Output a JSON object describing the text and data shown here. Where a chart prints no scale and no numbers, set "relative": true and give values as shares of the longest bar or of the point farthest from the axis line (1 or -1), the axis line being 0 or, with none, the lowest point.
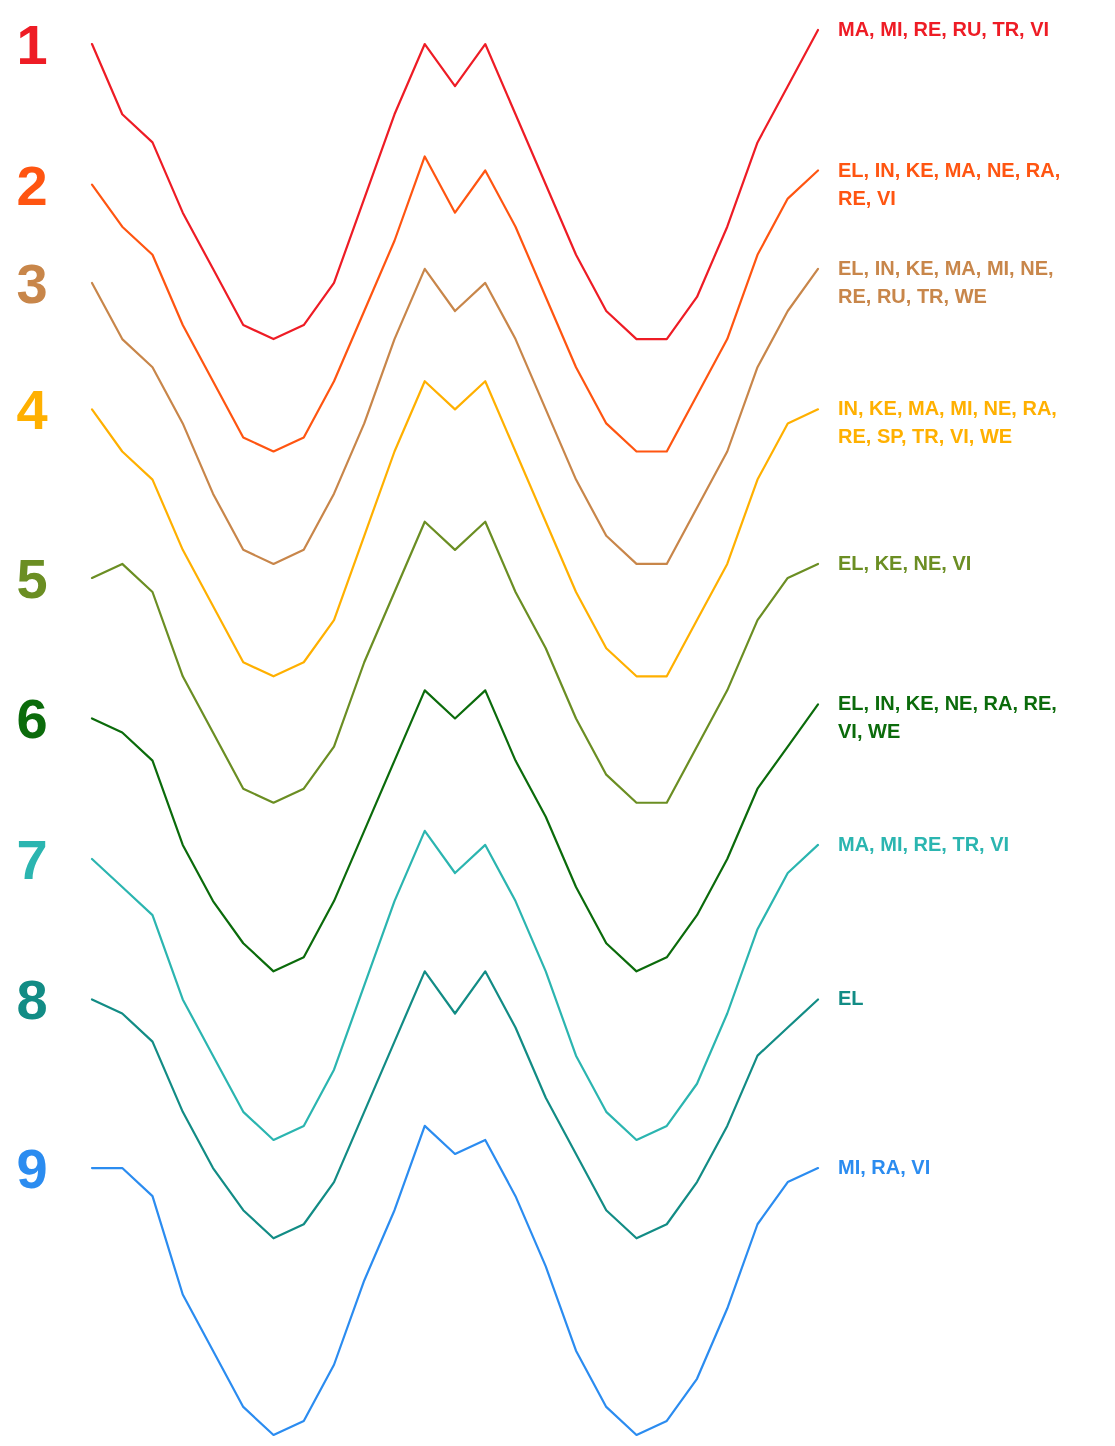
{
  "chart_data": {
    "type": "line",
    "relative": true,
    "categories": [
      null,
      null,
      null,
      null,
      null,
      null,
      null,
      null,
      null,
      null,
      null,
      null,
      null,
      null,
      null,
      null,
      null,
      null,
      null,
      null,
      null,
      null,
      null,
      null,
      null
    ],
    "series": [
      {
        "name": "1",
        "color": "#ee1c25",
        "values": [
          0.99,
          0.94,
          0.92,
          0.87,
          0.83,
          0.79,
          0.78,
          0.79,
          0.82,
          0.88,
          0.94,
          0.99,
          0.96,
          0.99,
          0.94,
          0.89,
          0.84,
          0.8,
          0.78,
          0.78,
          0.81,
          0.86,
          0.92,
          0.96,
          1.0
        ]
      },
      {
        "name": "2",
        "color": "#ff5511",
        "values": [
          0.89,
          0.86,
          0.84,
          0.79,
          0.75,
          0.71,
          0.7,
          0.71,
          0.75,
          0.8,
          0.85,
          0.91,
          0.87,
          0.9,
          0.86,
          0.81,
          0.76,
          0.72,
          0.7,
          0.7,
          0.74,
          0.78,
          0.84,
          0.88,
          0.9
        ]
      },
      {
        "name": "3",
        "color": "#c8864a",
        "values": [
          0.82,
          0.78,
          0.76,
          0.72,
          0.67,
          0.63,
          0.62,
          0.63,
          0.67,
          0.72,
          0.78,
          0.83,
          0.8,
          0.82,
          0.78,
          0.73,
          0.68,
          0.64,
          0.62,
          0.62,
          0.66,
          0.7,
          0.76,
          0.8,
          0.83
        ]
      },
      {
        "name": "4",
        "color": "#ffb000",
        "values": [
          0.73,
          0.7,
          0.68,
          0.63,
          0.59,
          0.55,
          0.54,
          0.55,
          0.58,
          0.64,
          0.7,
          0.75,
          0.73,
          0.75,
          0.7,
          0.65,
          0.6,
          0.56,
          0.54,
          0.54,
          0.58,
          0.62,
          0.68,
          0.72,
          0.73
        ]
      },
      {
        "name": "5",
        "color": "#6b8e23",
        "values": [
          0.61,
          0.62,
          0.6,
          0.54,
          0.5,
          0.46,
          0.45,
          0.46,
          0.49,
          0.55,
          0.6,
          0.65,
          0.63,
          0.65,
          0.6,
          0.56,
          0.51,
          0.47,
          0.45,
          0.45,
          0.49,
          0.53,
          0.58,
          0.61,
          0.62
        ]
      },
      {
        "name": "6",
        "color": "#0b6b0b",
        "values": [
          0.51,
          0.5,
          0.48,
          0.42,
          0.38,
          0.35,
          0.33,
          0.34,
          0.38,
          0.43,
          0.48,
          0.53,
          0.51,
          0.53,
          0.48,
          0.44,
          0.39,
          0.35,
          0.33,
          0.34,
          0.37,
          0.41,
          0.46,
          0.49,
          0.52
        ]
      },
      {
        "name": "7",
        "color": "#2bb5b0",
        "values": [
          0.41,
          0.39,
          0.37,
          0.31,
          0.27,
          0.23,
          0.21,
          0.22,
          0.26,
          0.32,
          0.38,
          0.43,
          0.4,
          0.42,
          0.38,
          0.33,
          0.27,
          0.23,
          0.21,
          0.22,
          0.25,
          0.3,
          0.36,
          0.4,
          0.42
        ]
      },
      {
        "name": "8",
        "color": "#128c85",
        "values": [
          0.31,
          0.3,
          0.28,
          0.23,
          0.19,
          0.16,
          0.14,
          0.15,
          0.18,
          0.23,
          0.28,
          0.33,
          0.3,
          0.33,
          0.29,
          0.24,
          0.2,
          0.16,
          0.14,
          0.15,
          0.18,
          0.22,
          0.27,
          0.29,
          0.31
        ]
      },
      {
        "name": "9",
        "color": "#2b8cf0",
        "values": [
          0.19,
          0.19,
          0.17,
          0.1,
          0.06,
          0.02,
          0.0,
          0.01,
          0.05,
          0.11,
          0.16,
          0.22,
          0.2,
          0.21,
          0.17,
          0.12,
          0.06,
          0.02,
          0.0,
          0.01,
          0.04,
          0.09,
          0.15,
          0.18,
          0.19
        ]
      }
    ],
    "annotations": [
      "MA, MI, RE, RU, TR, VI",
      "EL, IN, KE, MA, NE, RA, RE, VI",
      "EL, IN, KE, MA, MI, NE, RE, RU, TR, WE",
      "IN, KE, MA, MI, NE, RA, RE, SP, TR, VI, WE",
      "EL, KE, NE, VI",
      "EL, IN, KE, NE, RA, RE, VI, WE",
      "MA, MI, RE, TR, VI",
      "EL",
      "MI, RA, VI"
    ]
  }
}
